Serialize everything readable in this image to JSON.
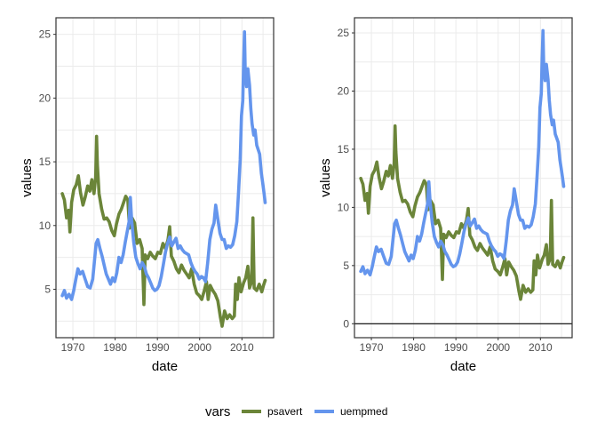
{
  "colors": {
    "psavert": "#6b8539",
    "uempmed": "#6495ed",
    "reference_line": "#000000"
  },
  "legend": {
    "title": "vars",
    "placement": "bottom",
    "items": [
      {
        "label": "psavert",
        "color": "#6b8539"
      },
      {
        "label": "uempmed",
        "color": "#6495ed"
      }
    ]
  },
  "chart_data": [
    {
      "type": "line",
      "xlabel": "date",
      "ylabel": "values",
      "x_ticks": [
        "1970",
        "1980",
        "1990",
        "2000",
        "2010"
      ],
      "y_ticks": [
        "5",
        "10",
        "15",
        "20",
        "25"
      ],
      "xlim": [
        1966.0,
        2017.5
      ],
      "ylim": [
        1.2,
        26.3
      ],
      "grid": true,
      "hline": null,
      "series": [
        {
          "name": "psavert",
          "points": [
            [
              1967.5,
              12.5
            ],
            [
              1968.0,
              12.0
            ],
            [
              1968.5,
              10.6
            ],
            [
              1969.0,
              11.2
            ],
            [
              1969.3,
              9.5
            ],
            [
              1969.7,
              11.8
            ],
            [
              1970.2,
              12.8
            ],
            [
              1970.8,
              13.2
            ],
            [
              1971.3,
              13.9
            ],
            [
              1971.8,
              12.6
            ],
            [
              1972.4,
              11.6
            ],
            [
              1972.9,
              12.2
            ],
            [
              1973.5,
              13.1
            ],
            [
              1974.0,
              12.7
            ],
            [
              1974.5,
              13.6
            ],
            [
              1975.0,
              12.5
            ],
            [
              1975.4,
              13.8
            ],
            [
              1975.6,
              17.0
            ],
            [
              1975.8,
              14.8
            ],
            [
              1976.2,
              12.5
            ],
            [
              1976.8,
              11.3
            ],
            [
              1977.4,
              10.5
            ],
            [
              1978.0,
              10.6
            ],
            [
              1978.6,
              10.3
            ],
            [
              1979.2,
              9.6
            ],
            [
              1979.8,
              9.2
            ],
            [
              1980.3,
              10.1
            ],
            [
              1980.9,
              10.9
            ],
            [
              1981.5,
              11.3
            ],
            [
              1982.0,
              11.8
            ],
            [
              1982.5,
              12.3
            ],
            [
              1983.0,
              12.0
            ],
            [
              1983.4,
              9.8
            ],
            [
              1984.0,
              10.6
            ],
            [
              1984.6,
              10.2
            ],
            [
              1985.2,
              8.6
            ],
            [
              1985.8,
              8.9
            ],
            [
              1986.4,
              8.2
            ],
            [
              1986.8,
              3.8
            ],
            [
              1987.1,
              7.7
            ],
            [
              1987.7,
              7.4
            ],
            [
              1988.3,
              7.9
            ],
            [
              1988.9,
              7.6
            ],
            [
              1989.5,
              7.4
            ],
            [
              1990.1,
              7.9
            ],
            [
              1990.7,
              7.8
            ],
            [
              1991.3,
              8.6
            ],
            [
              1991.9,
              8.2
            ],
            [
              1992.5,
              8.9
            ],
            [
              1992.9,
              9.9
            ],
            [
              1993.3,
              7.6
            ],
            [
              1993.9,
              7.2
            ],
            [
              1994.5,
              6.6
            ],
            [
              1995.1,
              6.3
            ],
            [
              1995.7,
              6.9
            ],
            [
              1996.3,
              6.5
            ],
            [
              1996.9,
              6.2
            ],
            [
              1997.5,
              5.9
            ],
            [
              1998.1,
              6.6
            ],
            [
              1998.7,
              5.4
            ],
            [
              1999.3,
              4.7
            ],
            [
              1999.9,
              4.5
            ],
            [
              2000.5,
              4.2
            ],
            [
              2001.1,
              4.9
            ],
            [
              2001.6,
              5.6
            ],
            [
              2002.0,
              4.2
            ],
            [
              2002.5,
              5.3
            ],
            [
              2003.1,
              4.9
            ],
            [
              2003.7,
              4.6
            ],
            [
              2004.3,
              4.1
            ],
            [
              2004.9,
              2.8
            ],
            [
              2005.3,
              2.1
            ],
            [
              2005.9,
              3.3
            ],
            [
              2006.5,
              2.7
            ],
            [
              2007.1,
              3.0
            ],
            [
              2007.7,
              2.7
            ],
            [
              2008.2,
              2.9
            ],
            [
              2008.5,
              5.4
            ],
            [
              2008.9,
              4.2
            ],
            [
              2009.3,
              5.9
            ],
            [
              2009.8,
              4.8
            ],
            [
              2010.4,
              5.5
            ],
            [
              2010.9,
              5.9
            ],
            [
              2011.4,
              6.8
            ],
            [
              2011.8,
              5.1
            ],
            [
              2012.3,
              5.6
            ],
            [
              2012.6,
              10.6
            ],
            [
              2012.9,
              5.1
            ],
            [
              2013.5,
              4.9
            ],
            [
              2014.1,
              5.4
            ],
            [
              2014.7,
              4.8
            ],
            [
              2015.1,
              5.3
            ],
            [
              2015.5,
              5.7
            ]
          ]
        },
        {
          "name": "uempmed",
          "points": [
            [
              1967.5,
              4.5
            ],
            [
              1968.0,
              4.9
            ],
            [
              1968.5,
              4.3
            ],
            [
              1969.1,
              4.6
            ],
            [
              1969.7,
              4.2
            ],
            [
              1970.2,
              4.9
            ],
            [
              1970.7,
              5.8
            ],
            [
              1971.2,
              6.6
            ],
            [
              1971.7,
              6.2
            ],
            [
              1972.3,
              6.4
            ],
            [
              1972.9,
              5.8
            ],
            [
              1973.5,
              5.2
            ],
            [
              1974.1,
              5.1
            ],
            [
              1974.7,
              5.8
            ],
            [
              1975.1,
              7.2
            ],
            [
              1975.5,
              8.6
            ],
            [
              1975.9,
              8.9
            ],
            [
              1976.4,
              8.2
            ],
            [
              1976.9,
              7.6
            ],
            [
              1977.4,
              6.9
            ],
            [
              1977.9,
              6.2
            ],
            [
              1978.4,
              5.8
            ],
            [
              1978.9,
              5.4
            ],
            [
              1979.4,
              5.9
            ],
            [
              1979.9,
              5.6
            ],
            [
              1980.4,
              6.3
            ],
            [
              1980.9,
              7.5
            ],
            [
              1981.4,
              7.1
            ],
            [
              1981.9,
              7.7
            ],
            [
              1982.4,
              8.7
            ],
            [
              1982.9,
              9.6
            ],
            [
              1983.3,
              10.3
            ],
            [
              1983.6,
              12.2
            ],
            [
              1983.9,
              10.4
            ],
            [
              1984.4,
              8.7
            ],
            [
              1984.9,
              7.5
            ],
            [
              1985.4,
              7.0
            ],
            [
              1985.9,
              6.6
            ],
            [
              1986.4,
              7.1
            ],
            [
              1986.9,
              6.8
            ],
            [
              1987.4,
              6.2
            ],
            [
              1987.9,
              5.9
            ],
            [
              1988.4,
              5.5
            ],
            [
              1988.9,
              5.1
            ],
            [
              1989.4,
              4.9
            ],
            [
              1989.9,
              5.0
            ],
            [
              1990.4,
              5.3
            ],
            [
              1990.9,
              6.0
            ],
            [
              1991.4,
              6.9
            ],
            [
              1991.9,
              7.9
            ],
            [
              1992.4,
              8.6
            ],
            [
              1992.9,
              9.1
            ],
            [
              1993.4,
              8.4
            ],
            [
              1993.9,
              8.7
            ],
            [
              1994.4,
              9.0
            ],
            [
              1994.9,
              8.2
            ],
            [
              1995.4,
              8.4
            ],
            [
              1995.9,
              8.1
            ],
            [
              1996.4,
              7.9
            ],
            [
              1996.9,
              7.8
            ],
            [
              1997.4,
              7.7
            ],
            [
              1997.9,
              7.1
            ],
            [
              1998.4,
              6.7
            ],
            [
              1998.9,
              6.4
            ],
            [
              1999.4,
              6.2
            ],
            [
              1999.9,
              5.8
            ],
            [
              2000.4,
              6.0
            ],
            [
              2000.9,
              5.9
            ],
            [
              2001.4,
              5.6
            ],
            [
              2001.9,
              7.1
            ],
            [
              2002.4,
              8.9
            ],
            [
              2002.9,
              9.7
            ],
            [
              2003.4,
              10.2
            ],
            [
              2003.8,
              11.6
            ],
            [
              2004.3,
              10.5
            ],
            [
              2004.8,
              9.4
            ],
            [
              2005.3,
              8.9
            ],
            [
              2005.8,
              8.9
            ],
            [
              2006.3,
              8.2
            ],
            [
              2006.8,
              8.4
            ],
            [
              2007.3,
              8.3
            ],
            [
              2007.8,
              8.5
            ],
            [
              2008.3,
              9.2
            ],
            [
              2008.8,
              10.3
            ],
            [
              2009.2,
              12.6
            ],
            [
              2009.6,
              15.2
            ],
            [
              2009.9,
              18.6
            ],
            [
              2010.2,
              19.8
            ],
            [
              2010.4,
              22.6
            ],
            [
              2010.6,
              25.2
            ],
            [
              2010.8,
              21.8
            ],
            [
              2011.1,
              20.9
            ],
            [
              2011.4,
              22.3
            ],
            [
              2011.8,
              21.0
            ],
            [
              2012.1,
              19.2
            ],
            [
              2012.4,
              18.0
            ],
            [
              2012.8,
              17.1
            ],
            [
              2013.1,
              17.5
            ],
            [
              2013.5,
              16.3
            ],
            [
              2013.9,
              15.9
            ],
            [
              2014.2,
              15.6
            ],
            [
              2014.6,
              14.1
            ],
            [
              2014.9,
              13.4
            ],
            [
              2015.2,
              12.6
            ],
            [
              2015.5,
              11.8
            ]
          ]
        }
      ]
    },
    {
      "type": "line",
      "xlabel": "date",
      "ylabel": "values",
      "x_ticks": [
        "1970",
        "1980",
        "1990",
        "2000",
        "2010"
      ],
      "y_ticks": [
        "0",
        "5",
        "10",
        "15",
        "20",
        "25"
      ],
      "xlim": [
        1966.0,
        2017.5
      ],
      "ylim": [
        -1.2,
        26.3
      ],
      "grid": true,
      "hline": 0,
      "series": [
        {
          "name": "psavert",
          "same_as_panel": 0
        },
        {
          "name": "uempmed",
          "same_as_panel": 0
        }
      ]
    }
  ]
}
